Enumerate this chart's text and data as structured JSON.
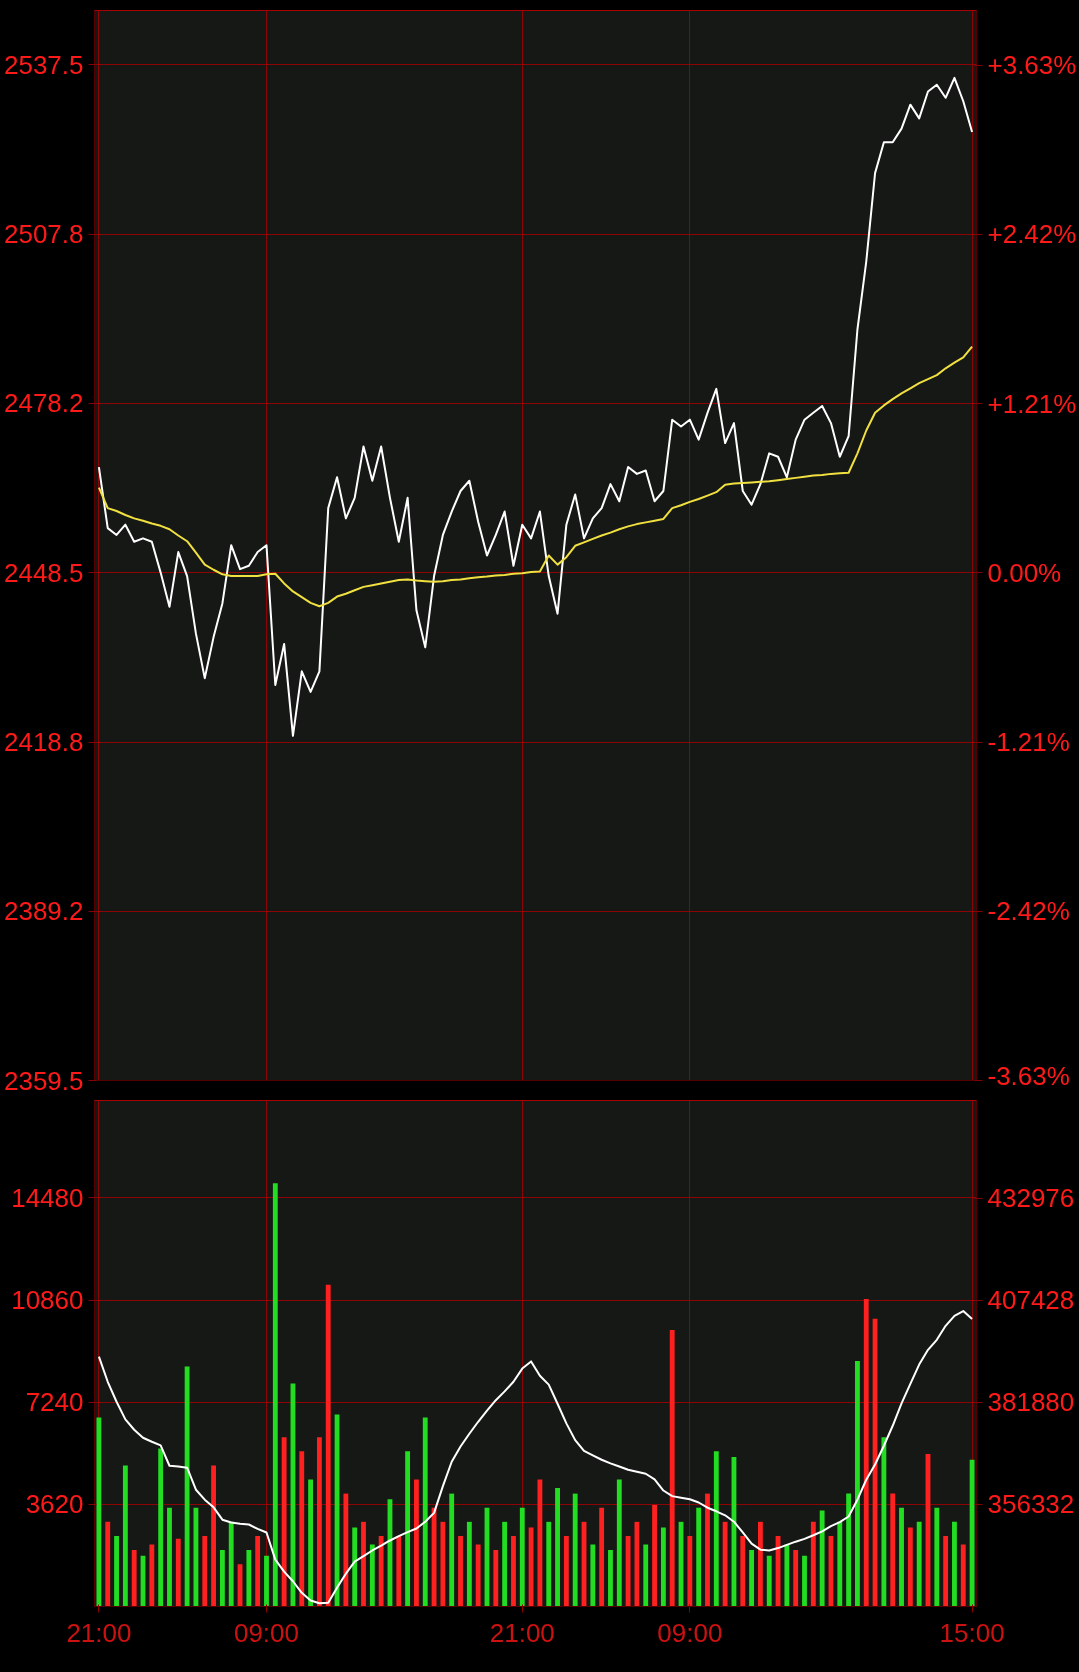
{
  "chart_data": [
    {
      "type": "line",
      "categories": [
        null,
        null,
        null,
        null,
        null,
        null,
        null,
        null,
        null,
        null,
        null,
        null,
        null,
        null,
        null,
        null,
        null,
        null,
        null,
        null,
        null,
        null,
        null,
        null,
        null,
        null,
        null,
        null,
        null,
        null,
        null,
        null,
        null,
        null,
        null,
        null,
        null,
        null,
        null,
        null,
        null,
        null,
        null,
        null,
        null,
        null,
        null,
        null,
        null,
        null,
        null,
        null,
        null,
        null,
        null,
        null,
        null,
        null,
        null,
        null,
        null,
        null,
        null,
        null,
        null,
        null,
        null,
        null,
        null,
        null,
        null,
        null,
        null,
        null,
        null,
        null,
        null,
        null,
        null,
        null,
        null,
        null,
        null,
        null,
        null,
        null,
        null,
        null,
        null,
        null,
        null,
        null,
        null,
        null,
        null,
        null,
        null,
        null,
        null,
        null
      ],
      "ylim": [
        2359.5,
        2547.0
      ],
      "yticks": [
        2359.5,
        2389.2,
        2418.8,
        2448.5,
        2478.2,
        2507.8,
        2537.5
      ],
      "y2lim": [
        -3.63,
        4.02
      ],
      "y2ticks": [
        {
          "value": -3.63,
          "label": "-3.63%"
        },
        {
          "value": -2.42,
          "label": "-2.42%"
        },
        {
          "value": -1.21,
          "label": "-1.21%"
        },
        {
          "value": 0,
          "label": "0.00%"
        },
        {
          "value": 1.21,
          "label": "+1.21%"
        },
        {
          "value": 2.42,
          "label": "+2.42%"
        },
        {
          "value": 3.63,
          "label": "+3.63%"
        }
      ],
      "tick_labels": "y",
      "grid": true,
      "series": [
        {
          "color": "#ffffff",
          "values": [
            2467.0,
            2456.3,
            2455.1,
            2456.9,
            2453.9,
            2454.5,
            2453.9,
            2448.5,
            2442.5,
            2452.1,
            2447.9,
            2437.8,
            2430.0,
            2437.2,
            2443.1,
            2453.3,
            2449.1,
            2449.7,
            2452.1,
            2453.3,
            2428.8,
            2436.0,
            2419.9,
            2431.2,
            2427.6,
            2431.2,
            2459.8,
            2465.2,
            2458.0,
            2461.6,
            2470.6,
            2464.6,
            2470.6,
            2461.6,
            2453.9,
            2461.6,
            2441.9,
            2435.4,
            2447.9,
            2455.1,
            2459.2,
            2462.8,
            2464.6,
            2457.4,
            2451.5,
            2455.1,
            2459.2,
            2449.7,
            2456.9,
            2454.5,
            2459.2,
            2447.9,
            2441.3,
            2456.9,
            2462.2,
            2454.5,
            2458.0,
            2459.8,
            2464.0,
            2461.0,
            2467.0,
            2465.8,
            2466.4,
            2461.0,
            2462.8,
            2475.3,
            2474.1,
            2475.3,
            2471.8,
            2476.5,
            2480.7,
            2471.2,
            2474.7,
            2462.8,
            2460.4,
            2464.0,
            2469.4,
            2468.8,
            2465.2,
            2471.8,
            2475.3,
            2476.5,
            2477.7,
            2474.7,
            2468.8,
            2472.4,
            2491.1,
            2503.0,
            2518.5,
            2523.9,
            2523.9,
            2526.3,
            2530.5,
            2528.1,
            2532.8,
            2534.0,
            2531.7,
            2535.2,
            2531.1,
            2525.7
          ]
        },
        {
          "color": "#f0e040",
          "values": [
            2463.4,
            2459.8,
            2459.3,
            2458.6,
            2458.0,
            2457.6,
            2457.1,
            2456.7,
            2456.1,
            2455.0,
            2454.0,
            2452.0,
            2449.9,
            2449.0,
            2448.2,
            2447.9,
            2447.9,
            2447.9,
            2447.9,
            2448.2,
            2448.3,
            2446.6,
            2445.2,
            2444.2,
            2443.2,
            2442.6,
            2443.2,
            2444.3,
            2444.8,
            2445.4,
            2446.0,
            2446.3,
            2446.6,
            2446.9,
            2447.2,
            2447.3,
            2447.1,
            2447.0,
            2446.9,
            2447.0,
            2447.2,
            2447.3,
            2447.5,
            2447.7,
            2447.8,
            2448.0,
            2448.1,
            2448.3,
            2448.4,
            2448.6,
            2448.7,
            2451.5,
            2449.9,
            2451.2,
            2453.2,
            2453.8,
            2454.4,
            2455.0,
            2455.5,
            2456.1,
            2456.6,
            2457.0,
            2457.3,
            2457.6,
            2457.9,
            2459.8,
            2460.3,
            2460.9,
            2461.4,
            2462.0,
            2462.6,
            2463.9,
            2464.1,
            2464.2,
            2464.3,
            2464.4,
            2464.5,
            2464.7,
            2464.9,
            2465.1,
            2465.3,
            2465.5,
            2465.6,
            2465.8,
            2465.9,
            2466.0,
            2469.4,
            2473.4,
            2476.5,
            2477.8,
            2478.9,
            2479.9,
            2480.8,
            2481.7,
            2482.4,
            2483.1,
            2484.3,
            2485.3,
            2486.2,
            2488.1
          ]
        }
      ]
    },
    {
      "type": "bar",
      "categories": [
        "21:00",
        null,
        null,
        null,
        null,
        null,
        null,
        null,
        null,
        null,
        null,
        null,
        null,
        null,
        null,
        null,
        null,
        null,
        null,
        "09:00",
        null,
        null,
        null,
        null,
        null,
        null,
        null,
        null,
        null,
        null,
        null,
        null,
        null,
        null,
        null,
        null,
        null,
        null,
        null,
        null,
        null,
        null,
        null,
        null,
        null,
        null,
        null,
        null,
        "21:00",
        null,
        null,
        null,
        null,
        null,
        null,
        null,
        null,
        null,
        null,
        null,
        null,
        null,
        null,
        null,
        null,
        null,
        null,
        "09:00",
        null,
        null,
        null,
        null,
        null,
        null,
        null,
        null,
        null,
        null,
        null,
        null,
        null,
        null,
        null,
        null,
        null,
        null,
        null,
        null,
        null,
        null,
        null,
        null,
        null,
        null,
        null,
        null,
        null,
        null,
        null,
        "15:00"
      ],
      "ylim": [
        0,
        17930
      ],
      "yticks": [
        3620,
        7240,
        10860,
        14480
      ],
      "y2lim": [
        330784,
        457370
      ],
      "y2ticks": [
        {
          "value": 356332,
          "label": "356332"
        },
        {
          "value": 381880,
          "label": "381880"
        },
        {
          "value": 407428,
          "label": "407428"
        },
        {
          "value": 432976,
          "label": "432976"
        }
      ],
      "grid": true,
      "series": [
        {
          "type": "bar",
          "values": [
            6700,
            3000,
            2500,
            5000,
            2000,
            1800,
            2200,
            5600,
            3500,
            2400,
            8500,
            3500,
            2500,
            5000,
            2000,
            3000,
            1500,
            2000,
            2500,
            1800,
            15000,
            6000,
            7900,
            5500,
            4500,
            6000,
            11400,
            6800,
            4000,
            2800,
            3000,
            2200,
            2500,
            3800,
            2500,
            5500,
            4500,
            6700,
            3500,
            3000,
            4000,
            2500,
            3000,
            2200,
            3500,
            2000,
            3000,
            2500,
            3500,
            2800,
            4500,
            3000,
            4200,
            2500,
            4000,
            3000,
            2200,
            3500,
            2000,
            4500,
            2500,
            3000,
            2200,
            3600,
            2800,
            9800,
            3000,
            2500,
            3500,
            4000,
            5500,
            3000,
            5300,
            2500,
            2000,
            3000,
            1800,
            2500,
            2200,
            2000,
            1800,
            3000,
            3400,
            2500,
            3000,
            4000,
            8700,
            10900,
            10200,
            6000,
            4000,
            3500,
            2800,
            3000,
            5400,
            3500,
            2500,
            3000,
            2200,
            5200
          ],
          "colors": [
            "#22dd22",
            "#ff2020",
            "#22dd22",
            "#22dd22",
            "#ff2020",
            "#22dd22",
            "#ff2020",
            "#22dd22",
            "#22dd22",
            "#ff2020",
            "#22dd22",
            "#22dd22",
            "#ff2020",
            "#ff2020",
            "#22dd22",
            "#22dd22",
            "#ff2020",
            "#22dd22",
            "#ff2020",
            "#22dd22",
            "#22dd22",
            "#ff2020",
            "#22dd22",
            "#ff2020",
            "#22dd22",
            "#ff2020",
            "#ff2020",
            "#22dd22",
            "#ff2020",
            "#22dd22",
            "#ff2020",
            "#22dd22",
            "#ff2020",
            "#22dd22",
            "#ff2020",
            "#22dd22",
            "#ff2020",
            "#22dd22",
            "#ff2020",
            "#ff2020",
            "#22dd22",
            "#ff2020",
            "#22dd22",
            "#ff2020",
            "#22dd22",
            "#ff2020",
            "#22dd22",
            "#ff2020",
            "#22dd22",
            "#ff2020",
            "#ff2020",
            "#22dd22",
            "#22dd22",
            "#ff2020",
            "#22dd22",
            "#ff2020",
            "#22dd22",
            "#ff2020",
            "#22dd22",
            "#22dd22",
            "#ff2020",
            "#ff2020",
            "#22dd22",
            "#ff2020",
            "#22dd22",
            "#ff2020",
            "#22dd22",
            "#ff2020",
            "#22dd22",
            "#ff2020",
            "#22dd22",
            "#ff2020",
            "#22dd22",
            "#ff2020",
            "#22dd22",
            "#ff2020",
            "#22dd22",
            "#ff2020",
            "#22dd22",
            "#ff2020",
            "#22dd22",
            "#ff2020",
            "#22dd22",
            "#ff2020",
            "#22dd22",
            "#22dd22",
            "#22dd22",
            "#ff2020",
            "#ff2020",
            "#22dd22",
            "#ff2020",
            "#22dd22",
            "#ff2020",
            "#22dd22",
            "#ff2020",
            "#22dd22",
            "#ff2020",
            "#22dd22",
            "#ff2020",
            "#22dd22"
          ]
        },
        {
          "type": "line",
          "axis": "y2",
          "color": "#ffffff",
          "values": [
            393300,
            387000,
            382000,
            377600,
            375000,
            373000,
            372000,
            371100,
            366000,
            365800,
            365500,
            360000,
            357500,
            355600,
            352500,
            351800,
            351500,
            351300,
            350200,
            349300,
            342500,
            339500,
            337100,
            334200,
            332300,
            331600,
            331700,
            335500,
            339000,
            342000,
            343400,
            344800,
            346000,
            347300,
            348400,
            349400,
            350300,
            352000,
            354200,
            360900,
            367000,
            370800,
            374000,
            377000,
            379800,
            382400,
            384600,
            387000,
            390300,
            392100,
            388500,
            386300,
            381500,
            376600,
            372400,
            369700,
            368600,
            367500,
            366600,
            365800,
            365000,
            364500,
            364000,
            362600,
            359800,
            358400,
            358000,
            357600,
            356800,
            355500,
            354600,
            353600,
            352000,
            349300,
            346500,
            345000,
            344800,
            345400,
            346200,
            347000,
            347700,
            348600,
            349600,
            350900,
            351900,
            353300,
            357500,
            362500,
            366300,
            371000,
            376000,
            381600,
            386500,
            391300,
            395000,
            397500,
            401000,
            403500,
            404700,
            402700
          ]
        }
      ]
    }
  ]
}
